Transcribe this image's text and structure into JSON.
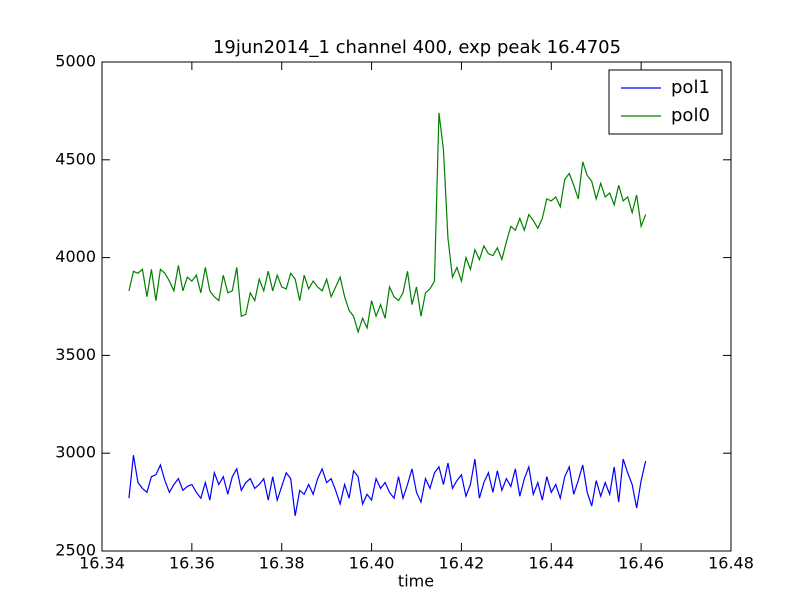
{
  "chart_data": {
    "type": "line",
    "title": "19jun2014_1 channel 400, exp peak 16.4705",
    "xlabel": "time",
    "legend": "upper right",
    "x": [
      16.346,
      16.347,
      16.348,
      16.349,
      16.35,
      16.351,
      16.352,
      16.353,
      16.354,
      16.355,
      16.356,
      16.357,
      16.358,
      16.359,
      16.36,
      16.361,
      16.362,
      16.363,
      16.364,
      16.365,
      16.366,
      16.367,
      16.368,
      16.369,
      16.37,
      16.371,
      16.372,
      16.373,
      16.374,
      16.375,
      16.376,
      16.377,
      16.378,
      16.379,
      16.38,
      16.381,
      16.382,
      16.383,
      16.384,
      16.385,
      16.386,
      16.387,
      16.388,
      16.389,
      16.39,
      16.391,
      16.392,
      16.393,
      16.394,
      16.395,
      16.396,
      16.397,
      16.398,
      16.399,
      16.4,
      16.401,
      16.402,
      16.403,
      16.404,
      16.405,
      16.406,
      16.407,
      16.408,
      16.409,
      16.41,
      16.411,
      16.412,
      16.413,
      16.414,
      16.415,
      16.416,
      16.417,
      16.418,
      16.419,
      16.42,
      16.421,
      16.422,
      16.423,
      16.424,
      16.425,
      16.426,
      16.427,
      16.428,
      16.429,
      16.43,
      16.431,
      16.432,
      16.433,
      16.434,
      16.435,
      16.436,
      16.437,
      16.438,
      16.439,
      16.44,
      16.441,
      16.442,
      16.443,
      16.444,
      16.445,
      16.446,
      16.447,
      16.448,
      16.449,
      16.45,
      16.451,
      16.452,
      16.453,
      16.454,
      16.455,
      16.456,
      16.457,
      16.458,
      16.459,
      16.46,
      16.461
    ],
    "series": [
      {
        "name": "pol1",
        "color": "#0000ff",
        "values": [
          2770,
          2990,
          2850,
          2820,
          2800,
          2880,
          2890,
          2940,
          2860,
          2800,
          2840,
          2870,
          2810,
          2830,
          2840,
          2800,
          2770,
          2850,
          2760,
          2900,
          2840,
          2880,
          2790,
          2880,
          2920,
          2810,
          2850,
          2870,
          2820,
          2840,
          2870,
          2760,
          2880,
          2760,
          2830,
          2900,
          2870,
          2680,
          2810,
          2790,
          2840,
          2790,
          2870,
          2920,
          2850,
          2870,
          2810,
          2740,
          2840,
          2770,
          2910,
          2880,
          2740,
          2790,
          2760,
          2870,
          2820,
          2850,
          2800,
          2770,
          2880,
          2770,
          2840,
          2920,
          2800,
          2750,
          2870,
          2820,
          2900,
          2930,
          2840,
          2950,
          2820,
          2860,
          2890,
          2780,
          2840,
          2970,
          2770,
          2850,
          2900,
          2800,
          2910,
          2810,
          2870,
          2830,
          2920,
          2780,
          2870,
          2930,
          2790,
          2850,
          2760,
          2880,
          2800,
          2840,
          2770,
          2880,
          2930,
          2790,
          2860,
          2940,
          2800,
          2730,
          2860,
          2780,
          2850,
          2790,
          2930,
          2750,
          2970,
          2900,
          2840,
          2720,
          2860,
          2960
        ]
      },
      {
        "name": "pol0",
        "color": "#008000",
        "values": [
          3830,
          3930,
          3920,
          3940,
          3800,
          3940,
          3780,
          3940,
          3920,
          3880,
          3830,
          3960,
          3830,
          3900,
          3880,
          3910,
          3820,
          3950,
          3830,
          3800,
          3780,
          3910,
          3820,
          3830,
          3950,
          3700,
          3710,
          3820,
          3780,
          3890,
          3830,
          3930,
          3830,
          3910,
          3850,
          3840,
          3920,
          3890,
          3780,
          3910,
          3840,
          3880,
          3850,
          3830,
          3890,
          3800,
          3850,
          3900,
          3800,
          3730,
          3700,
          3620,
          3690,
          3640,
          3780,
          3700,
          3760,
          3690,
          3850,
          3800,
          3780,
          3820,
          3930,
          3760,
          3850,
          3700,
          3820,
          3840,
          3880,
          4740,
          4550,
          4100,
          3900,
          3950,
          3880,
          4000,
          3940,
          4040,
          3990,
          4060,
          4020,
          4010,
          4050,
          3990,
          4080,
          4160,
          4140,
          4200,
          4140,
          4220,
          4190,
          4150,
          4200,
          4300,
          4290,
          4310,
          4260,
          4400,
          4430,
          4370,
          4300,
          4490,
          4420,
          4390,
          4300,
          4380,
          4310,
          4330,
          4270,
          4370,
          4290,
          4310,
          4230,
          4320,
          4160,
          4220
        ]
      }
    ],
    "xlim": [
      16.34,
      16.48
    ],
    "xticks": [
      16.34,
      16.36,
      16.38,
      {
        "value": 16.4,
        "label": "16.40"
      },
      16.42,
      16.44,
      16.46,
      16.48
    ],
    "ylim": [
      2500,
      5000
    ],
    "yticks": [
      2500,
      3000,
      3500,
      4000,
      4500,
      5000
    ]
  }
}
